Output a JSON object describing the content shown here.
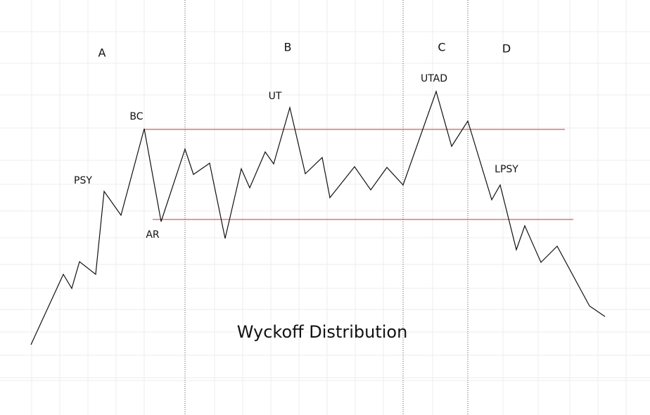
{
  "title": "Wyckoff Distribution",
  "phases": [
    "A",
    "B",
    "C",
    "D"
  ],
  "events": {
    "psy": "PSY",
    "bc": "BC",
    "ar": "AR",
    "ut": "UT",
    "utad": "UTAD",
    "lpsy": "LPSY"
  }
}
